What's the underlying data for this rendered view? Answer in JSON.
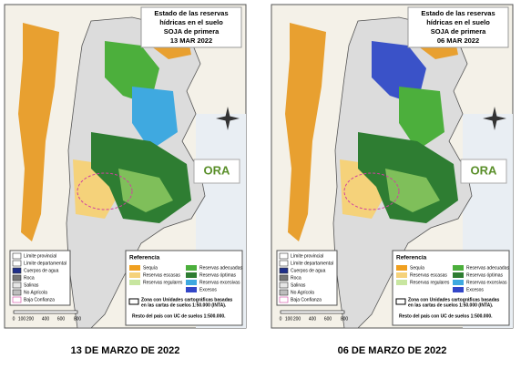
{
  "panels": [
    {
      "title": [
        "Estado de las reservas",
        "hídricas en el suelo",
        "SOJA de primera",
        "13 MAR 2022"
      ],
      "caption": "13 DE MARZO DE 2022"
    },
    {
      "title": [
        "Estado de las reservas",
        "hídricas en el suelo",
        "SOJA de primera",
        "06 MAR 2022"
      ],
      "caption": "06 DE MARZO DE 2022"
    }
  ],
  "logo": "ORA",
  "map_legend": [
    "Límite provincial",
    "Límite departamental",
    "Cuerpos de agua",
    "Roca",
    "Salinas",
    "No Agrícola",
    "Baja Confianza"
  ],
  "scale": [
    "0",
    "100",
    "200",
    "400",
    "600",
    "800"
  ],
  "reference": {
    "title": "Referencia",
    "items": [
      "Sequía",
      "Reservas escasas",
      "Reservas regulares",
      "Reservas adecuadas",
      "Reservas óptimas",
      "Reservas excesivas",
      "Excesos"
    ],
    "note": [
      "Zona con Unidades cartográficas basadas",
      "en las cartas de suelos 1:50.000 (INTA).",
      "Resto del país con UC de suelos 1:500.000."
    ]
  }
}
